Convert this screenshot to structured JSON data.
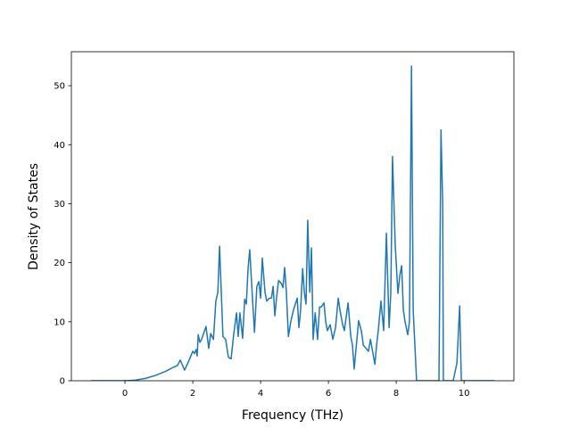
{
  "chart_data": {
    "type": "line",
    "x_label": "Frequency (THz)",
    "y_label": "Density of States",
    "x": [
      -1.0,
      0.0,
      0.3,
      0.6,
      0.9,
      1.2,
      1.4,
      1.55,
      1.63,
      1.76,
      1.9,
      2.0,
      2.05,
      2.1,
      2.13,
      2.16,
      2.21,
      2.26,
      2.39,
      2.47,
      2.53,
      2.61,
      2.68,
      2.74,
      2.79,
      2.89,
      2.97,
      3.05,
      3.13,
      3.21,
      3.29,
      3.34,
      3.39,
      3.47,
      3.53,
      3.58,
      3.63,
      3.68,
      3.76,
      3.82,
      3.89,
      3.95,
      4.0,
      4.05,
      4.13,
      4.18,
      4.26,
      4.32,
      4.37,
      4.42,
      4.47,
      4.53,
      4.61,
      4.66,
      4.71,
      4.76,
      4.82,
      4.89,
      4.97,
      5.08,
      5.13,
      5.18,
      5.24,
      5.29,
      5.34,
      5.39,
      5.45,
      5.5,
      5.55,
      5.61,
      5.68,
      5.74,
      5.79,
      5.87,
      5.92,
      5.97,
      6.05,
      6.13,
      6.21,
      6.29,
      6.34,
      6.42,
      6.47,
      6.58,
      6.66,
      6.71,
      6.76,
      6.84,
      6.89,
      6.97,
      7.03,
      7.11,
      7.18,
      7.24,
      7.37,
      7.42,
      7.47,
      7.55,
      7.63,
      7.71,
      7.79,
      7.84,
      7.89,
      7.97,
      8.05,
      8.11,
      8.16,
      8.21,
      8.26,
      8.34,
      8.39,
      8.45,
      8.5,
      8.55,
      8.6,
      9.26,
      9.32,
      9.37,
      9.39,
      9.68,
      9.79,
      9.87,
      9.92,
      10.9
    ],
    "series": [
      {
        "color": "#1f77b4",
        "values": [
          0,
          0,
          0.1,
          0.4,
          0.9,
          1.6,
          2.2,
          2.6,
          3.5,
          1.8,
          3.6,
          5.0,
          4.6,
          5.3,
          4.2,
          7.8,
          6.5,
          7.0,
          9.2,
          5.5,
          8.0,
          7.0,
          13.5,
          15.0,
          22.8,
          7.5,
          7.0,
          4.0,
          3.7,
          8.0,
          11.5,
          7.5,
          11.5,
          7.2,
          13.8,
          13.0,
          19.0,
          22.2,
          14.0,
          8.2,
          16.0,
          16.8,
          14.0,
          20.8,
          15.0,
          13.5,
          14.0,
          14.0,
          16.0,
          11.0,
          14.0,
          17.0,
          16.5,
          15.8,
          19.2,
          15.0,
          7.5,
          10.0,
          12.0,
          14.0,
          9.0,
          12.0,
          19.0,
          15.0,
          13.0,
          27.2,
          15.0,
          22.5,
          7.0,
          11.5,
          7.0,
          12.5,
          12.5,
          13.2,
          10.0,
          8.5,
          9.5,
          7.0,
          9.0,
          14.0,
          12.0,
          9.5,
          8.5,
          13.2,
          7.5,
          6.0,
          2.0,
          7.0,
          10.2,
          8.5,
          6.0,
          5.5,
          5.0,
          7.0,
          2.8,
          6.0,
          8.5,
          13.5,
          8.5,
          25.0,
          9.0,
          15.0,
          38.0,
          23.0,
          14.8,
          18.0,
          19.5,
          12.0,
          10.0,
          7.8,
          10.0,
          53.3,
          12.0,
          6.0,
          0,
          0,
          42.5,
          30.0,
          0,
          0,
          3.0,
          12.7,
          0,
          0
        ]
      }
    ],
    "xlim": [
      -1.58,
      11.47
    ],
    "ylim": [
      0,
      55.76
    ],
    "xticks": [
      0,
      2,
      4,
      6,
      8,
      10
    ],
    "yticks": [
      0,
      10,
      20,
      30,
      40,
      50
    ]
  }
}
